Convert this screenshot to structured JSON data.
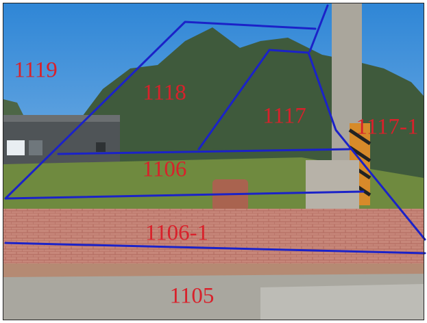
{
  "parcels": [
    {
      "label": "1119"
    },
    {
      "label": "1118"
    },
    {
      "label": "1117"
    },
    {
      "label": "1117-1"
    },
    {
      "label": "1106"
    },
    {
      "label": "1106-1"
    },
    {
      "label": "1105"
    }
  ]
}
